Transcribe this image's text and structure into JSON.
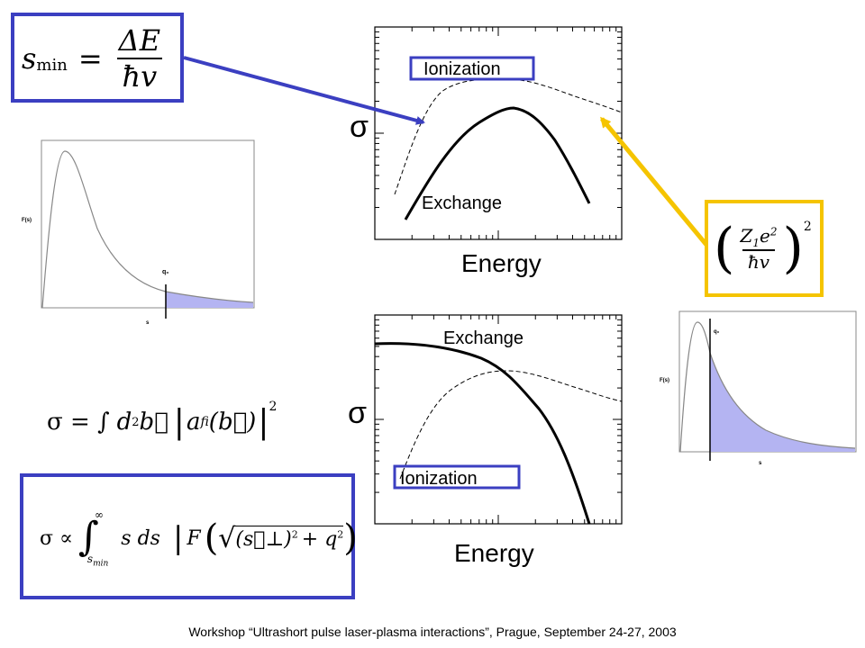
{
  "formulas": {
    "smin_lhs": "s",
    "smin_sub": "min",
    "smin_eq": "=",
    "smin_num": "ΔE",
    "smin_den": "ħv",
    "charge_num": "Z",
    "charge_num_sub": "1",
    "charge_num_rest": "e",
    "charge_num_sup": "2",
    "charge_den": "ħv",
    "charge_exp": "2",
    "sigma_integral": "σ = ∫ d²b⃗ |a_fi(b⃗)|²",
    "sigma_integral_lhs": "σ = ∫",
    "sigma_integral_mid": "d",
    "sigma_integral_sup": "2",
    "sigma_integral_b": "b⃗",
    "sigma_integral_a": "a",
    "sigma_integral_a_sub": "fi",
    "sigma_integral_arg": "(b⃗)",
    "sigma_integral_exp": "2",
    "sigma_prop_lhs": "σ ∝",
    "sigma_prop_upper": "∞",
    "sigma_prop_lower": "s",
    "sigma_prop_lower_sub": "min",
    "sigma_prop_body": "s ds",
    "sigma_prop_F": "F",
    "sigma_prop_s": "(s⃗⊥)",
    "sigma_prop_s_sup": "2",
    "sigma_prop_q": "+ q",
    "sigma_prop_q_sup": "2"
  },
  "top_chart": {
    "ylabel": "σ",
    "xlabel": "Energy",
    "labels": {
      "dashed": "Ionization",
      "solid": "Exchange"
    }
  },
  "bottom_chart": {
    "ylabel": "σ",
    "xlabel": "Energy",
    "labels": {
      "solid": "Exchange",
      "dashed": "Ionization"
    }
  },
  "mini_left": {
    "ylabel": "F(s)",
    "xlabel": "s",
    "marker": "q₀"
  },
  "mini_right": {
    "ylabel": "F(s)",
    "xlabel": "s",
    "marker": "q₀"
  },
  "footer": "Workshop “Ultrashort pulse laser-plasma interactions”, Prague, September 24-27, 2003",
  "colors": {
    "blue": "#3b3fc1",
    "gold": "#f5c400",
    "fill": "#b4b4f2"
  }
}
